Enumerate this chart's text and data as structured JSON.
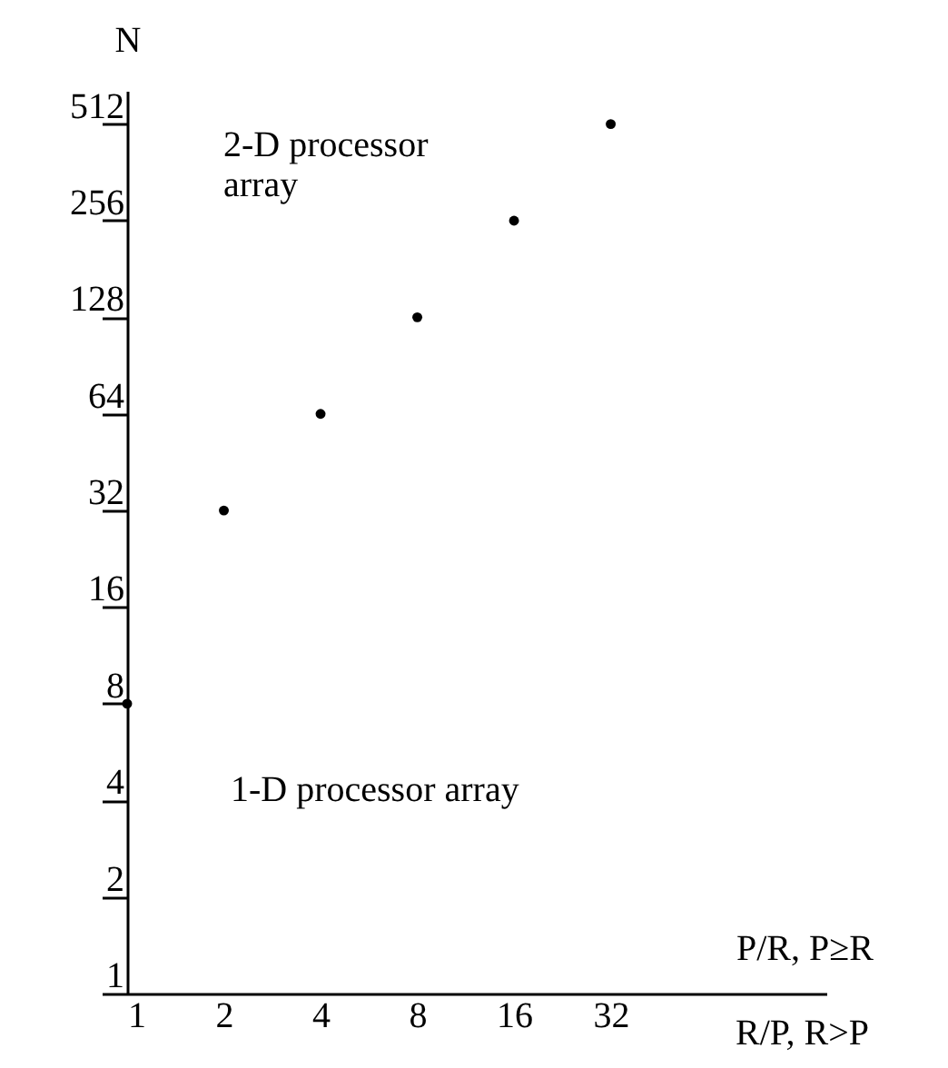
{
  "chart_data": {
    "type": "scatter",
    "xlabel": "P/R, P≥R",
    "ylabel": "N",
    "x": [
      1,
      2,
      4,
      8,
      16,
      32
    ],
    "series": [
      {
        "color": "#000000",
        "values": [
          8,
          32,
          64,
          128,
          256,
          512
        ]
      }
    ],
    "xlim": [
      1,
      150
    ],
    "ylim": [
      1,
      650
    ],
    "xticks": [
      1,
      2,
      4,
      8,
      16,
      32
    ],
    "yticks": [
      1,
      2,
      4,
      8,
      16,
      32,
      64,
      128,
      256,
      512
    ],
    "log": "xy",
    "marker": "circle",
    "annotations": [
      "R/P, R>P",
      "2-D processor\narray",
      "1-D processor array"
    ]
  }
}
